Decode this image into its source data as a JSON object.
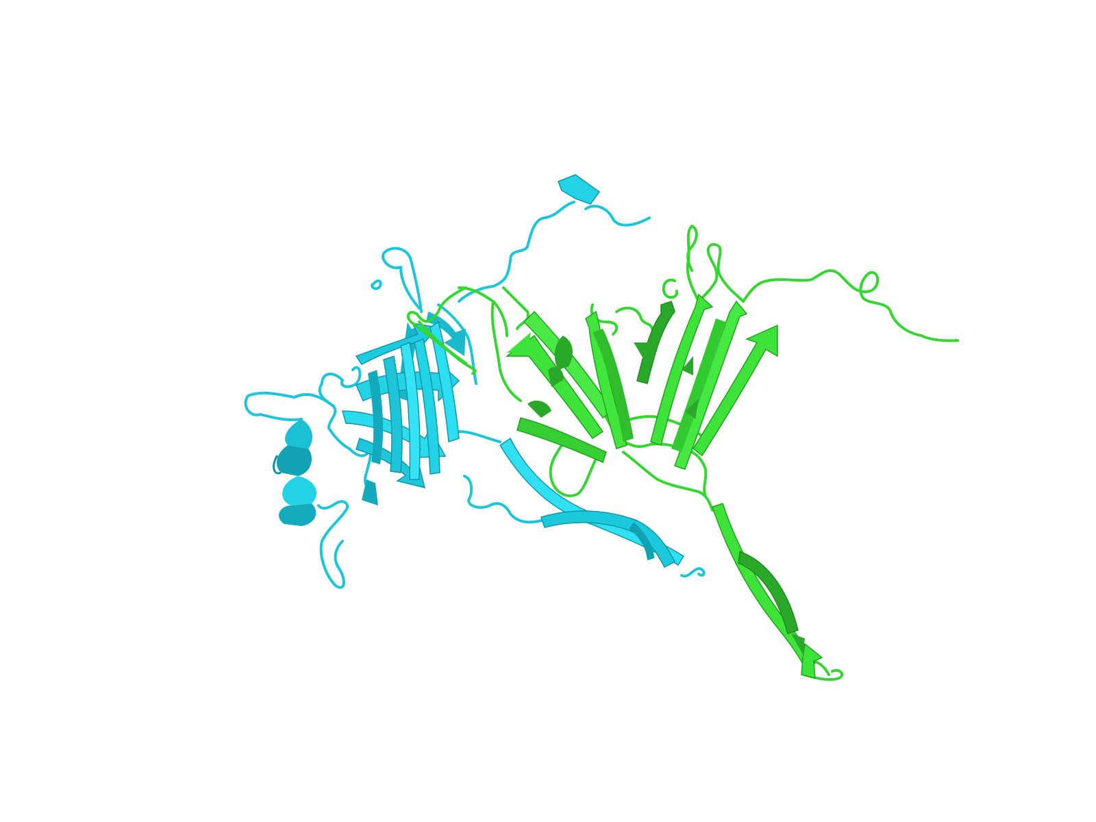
{
  "scene": {
    "background_color": "#ffffff",
    "render_style": "cartoon",
    "chains": [
      {
        "name": "chain-cyan",
        "color": "#22d3e6",
        "dark_color": "#12a9bb",
        "light_color": "#5cf0ff",
        "elements": [
          "beta-barrel",
          "alpha-helix",
          "beta-hairpin",
          "loops"
        ]
      },
      {
        "name": "chain-green",
        "color": "#3ee33a",
        "dark_color": "#2aa82a",
        "light_color": "#7af576",
        "elements": [
          "beta-sheet",
          "beta-hairpin",
          "loops"
        ]
      }
    ]
  }
}
